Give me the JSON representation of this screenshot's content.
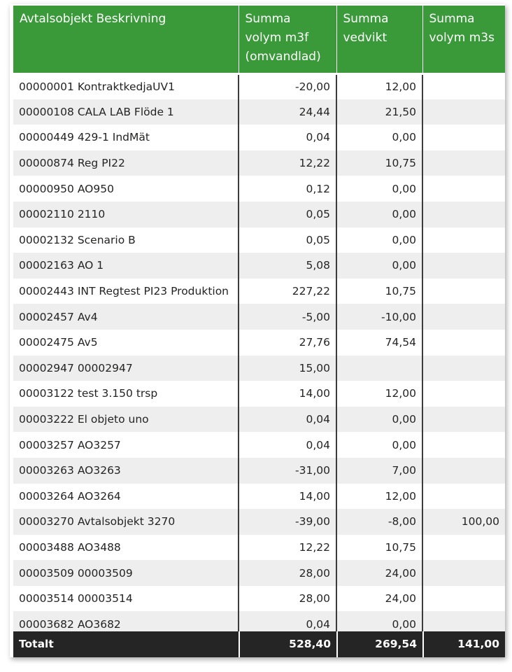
{
  "table": {
    "headers": [
      "Avtalsobjekt Beskrivning",
      "Summa volym m3f (omvandlad)",
      "Summa vedvikt",
      "Summa volym m3s"
    ],
    "rows": [
      [
        "00000001 KontraktkedjaUV1",
        "-20,00",
        "12,00",
        ""
      ],
      [
        "00000108 CALA LAB Flöde 1",
        "24,44",
        "21,50",
        ""
      ],
      [
        "00000449 429-1 IndMät",
        "0,04",
        "0,00",
        ""
      ],
      [
        "00000874 Reg PI22",
        "12,22",
        "10,75",
        ""
      ],
      [
        "00000950 AO950",
        "0,12",
        "0,00",
        ""
      ],
      [
        "00002110 2110",
        "0,05",
        "0,00",
        ""
      ],
      [
        "00002132 Scenario B",
        "0,05",
        "0,00",
        ""
      ],
      [
        "00002163 AO 1",
        "5,08",
        "0,00",
        ""
      ],
      [
        "00002443 INT Regtest PI23 Produktion",
        "227,22",
        "10,75",
        ""
      ],
      [
        "00002457 Av4",
        "-5,00",
        "-10,00",
        ""
      ],
      [
        "00002475 Av5",
        "27,76",
        "74,54",
        ""
      ],
      [
        "00002947 00002947",
        "15,00",
        "",
        ""
      ],
      [
        "00003122 test 3.150 trsp",
        "14,00",
        "12,00",
        ""
      ],
      [
        "00003222 El objeto uno",
        "0,04",
        "0,00",
        ""
      ],
      [
        "00003257 AO3257",
        "0,04",
        "0,00",
        ""
      ],
      [
        "00003263 AO3263",
        "-31,00",
        "7,00",
        ""
      ],
      [
        "00003264 AO3264",
        "14,00",
        "12,00",
        ""
      ],
      [
        "00003270 Avtalsobjekt 3270",
        "-39,00",
        "-8,00",
        "100,00"
      ],
      [
        "00003488 AO3488",
        "12,22",
        "10,75",
        ""
      ],
      [
        "00003509 00003509",
        "28,00",
        "24,00",
        ""
      ],
      [
        "00003514 00003514",
        "28,00",
        "24,00",
        ""
      ],
      [
        "00003682 AO3682",
        "0,04",
        "0,00",
        ""
      ]
    ],
    "total": {
      "label": "Totalt",
      "volym_m3f": "528,40",
      "vedvikt": "269,54",
      "volym_m3s": "141,00"
    }
  },
  "colors": {
    "header_bg": "#3a9a3a",
    "total_bg": "#252525",
    "row_alt_bg": "#eeeeee"
  }
}
